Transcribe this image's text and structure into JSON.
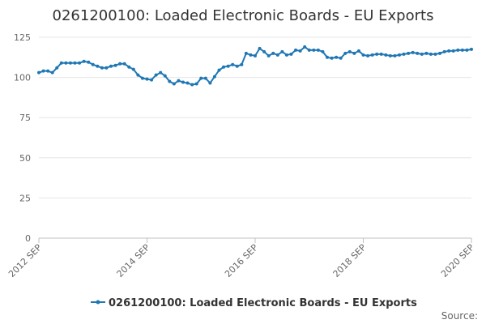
{
  "chart_data": {
    "type": "line",
    "title": "0261200100: Loaded Electronic Boards - EU Exports",
    "xlabel": "",
    "ylabel": "",
    "ylim": [
      0,
      125
    ],
    "yticks": [
      0,
      25,
      50,
      75,
      100,
      125
    ],
    "grid": true,
    "legend_position": "bottom",
    "x_tick_labels": [
      "2012 SEP",
      "2014 SEP",
      "2016 SEP",
      "2018 SEP",
      "2020 SEP"
    ],
    "x_start": "2012-09",
    "series": [
      {
        "name": "0261200100: Loaded Electronic Boards - EU Exports",
        "color": "#1f77b4",
        "values": [
          103,
          104,
          104,
          103,
          106,
          109,
          109,
          109,
          109,
          109,
          110,
          109.5,
          108,
          107,
          106,
          106,
          107,
          107.5,
          108.5,
          108.5,
          106.5,
          105,
          101.5,
          99.5,
          99,
          98.5,
          101.5,
          103,
          101,
          97.5,
          96,
          98,
          97,
          96.5,
          95.5,
          96,
          99.5,
          99.5,
          96.5,
          100.5,
          104.5,
          106.5,
          107,
          108,
          107,
          108,
          115,
          114,
          113.5,
          118,
          116,
          113.5,
          115,
          114,
          116,
          114,
          114.5,
          117,
          116.5,
          119,
          117,
          117,
          117,
          116,
          112.5,
          112,
          112.5,
          112,
          115,
          116,
          115,
          116.5,
          114,
          113.5,
          114,
          114.5,
          114.5,
          114,
          113.5,
          113.5,
          114,
          114.5,
          115,
          115.5,
          115,
          114.5,
          115,
          114.5,
          114.5,
          115,
          116,
          116.5,
          116.5,
          117,
          117,
          117,
          117.5
        ]
      }
    ]
  },
  "footer": {
    "source_label": "Source:"
  }
}
